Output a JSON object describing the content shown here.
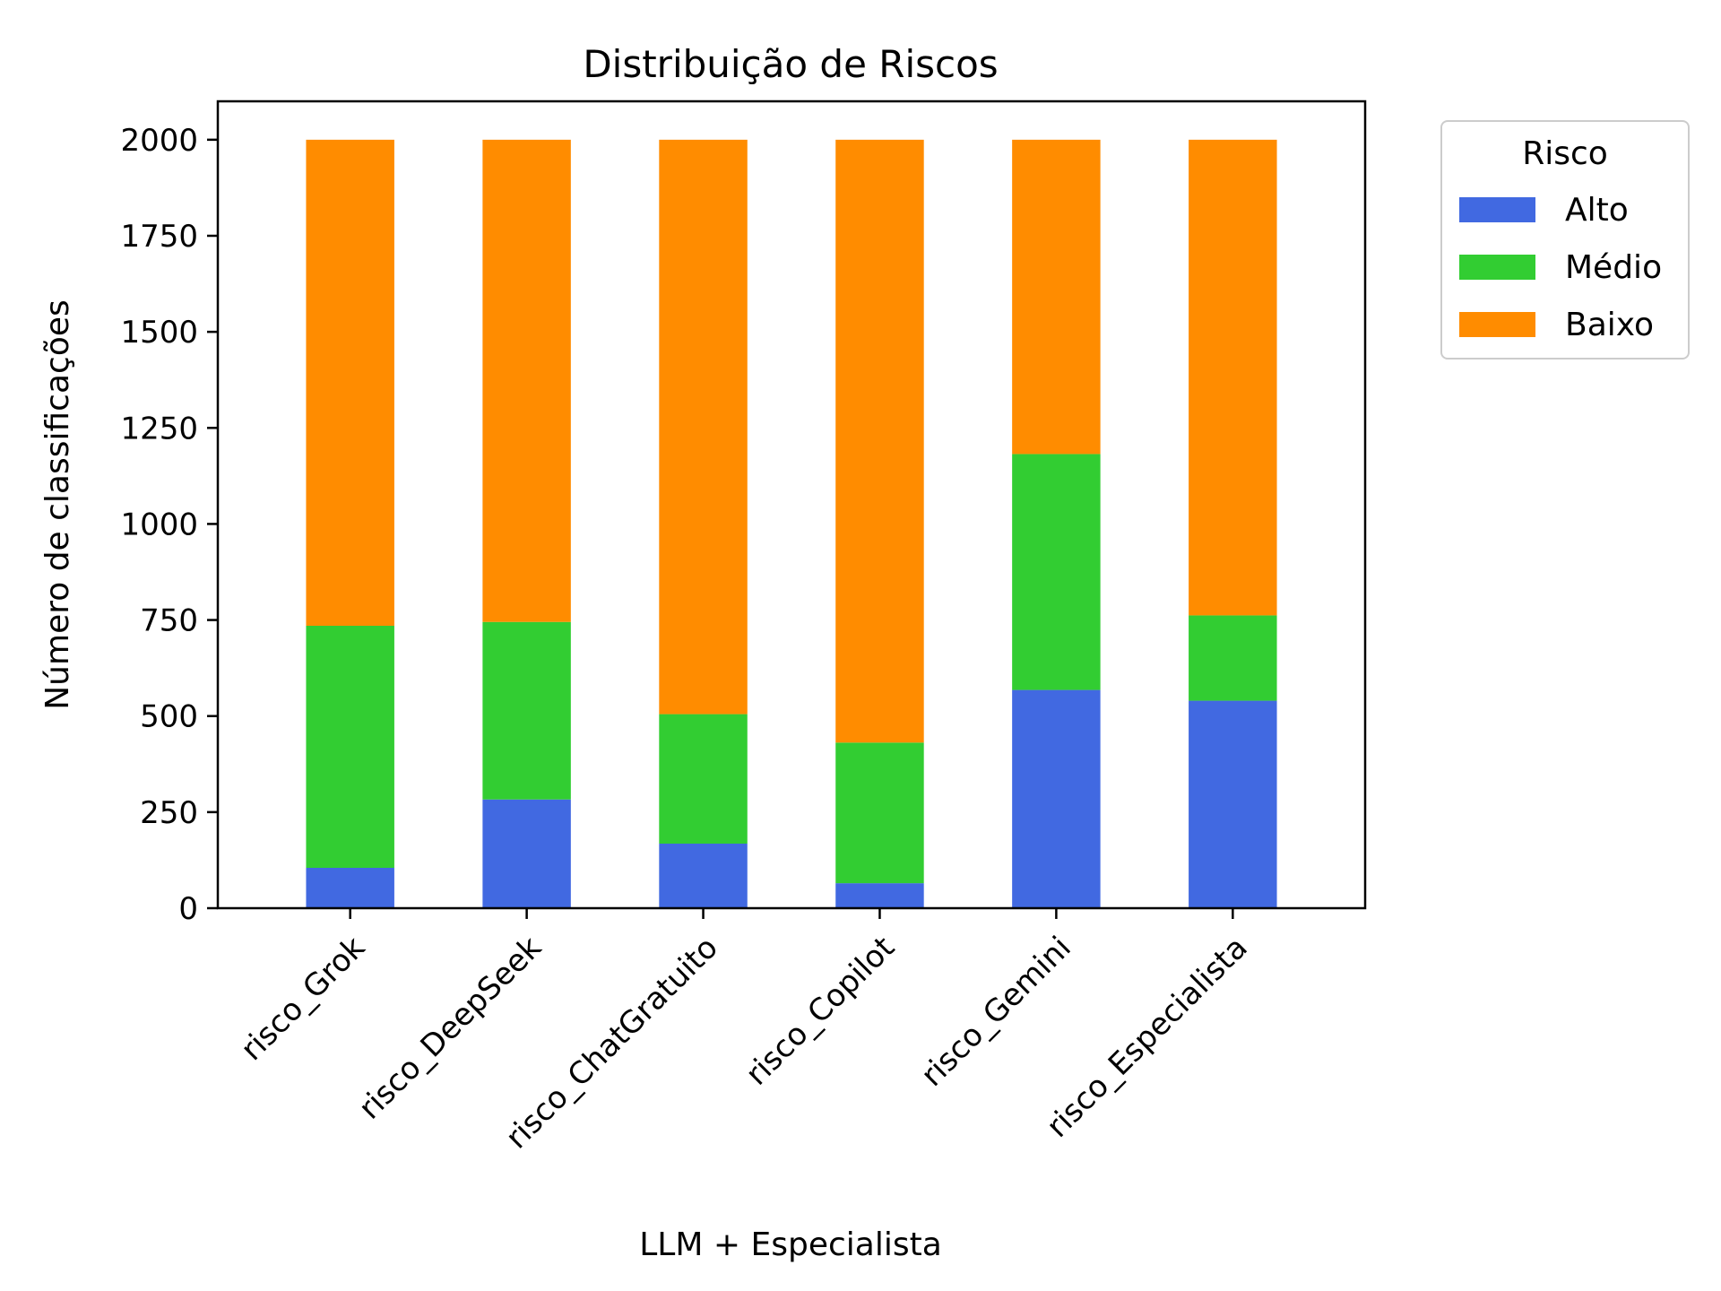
{
  "chart_data": {
    "type": "bar",
    "stacked": true,
    "title": "Distribuição de Riscos",
    "xlabel": "LLM + Especialista",
    "ylabel": "Número de classificações",
    "categories": [
      "risco_Grok",
      "risco_DeepSeek",
      "risco_ChatGratuito",
      "risco_Copilot",
      "risco_Gemini",
      "risco_Especialista"
    ],
    "series": [
      {
        "name": "Alto",
        "color": "#4169E1",
        "values": [
          105,
          283,
          168,
          65,
          568,
          540
        ]
      },
      {
        "name": "Médio",
        "color": "#32CD32",
        "values": [
          630,
          462,
          337,
          366,
          614,
          222
        ]
      },
      {
        "name": "Baixo",
        "color": "#FF8C00",
        "values": [
          1265,
          1255,
          1495,
          1569,
          818,
          1238
        ]
      }
    ],
    "ylim": [
      0,
      2100
    ],
    "yticks": [
      0,
      250,
      500,
      750,
      1000,
      1250,
      1500,
      1750,
      2000
    ],
    "grid": false,
    "legend": {
      "title": "Risco",
      "placement": "outside-top-right"
    }
  }
}
